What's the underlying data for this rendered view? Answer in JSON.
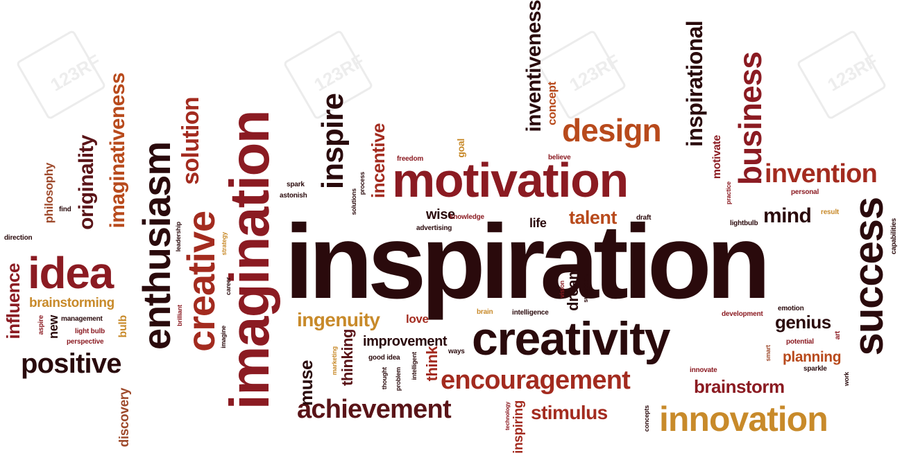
{
  "watermark": {
    "text": "123RF"
  },
  "words": {
    "inspiration": "inspiration",
    "creativity": "creativity",
    "motivation": "motivation",
    "imagination": "imagination",
    "enthusiasm": "enthusiasm",
    "creative": "creative",
    "success": "success",
    "innovation": "innovation",
    "encouragement": "encouragement",
    "achievement": "achievement",
    "idea": "idea",
    "positive": "positive",
    "design": "design",
    "business": "business",
    "invention": "invention",
    "inspire": "inspire",
    "inventiveness": "inventiveness",
    "inspirational": "inspirational",
    "imaginativeness": "imaginativeness",
    "originality": "originality",
    "solution": "solution",
    "ingenuity": "ingenuity",
    "improvement": "improvement",
    "stimulus": "stimulus",
    "genius": "genius",
    "brainstorm": "brainstorm",
    "brainstorming": "brainstorming",
    "planning": "planning",
    "talent": "talent",
    "mind": "mind",
    "incentive": "incentive",
    "muse": "muse",
    "thinking": "thinking",
    "influence": "influence",
    "wise": "wise",
    "life": "life",
    "love": "love",
    "think": "think",
    "dream": "dream",
    "concept": "concept",
    "philosophy": "philosophy",
    "discovery": "discovery",
    "inspiring": "inspiring",
    "motivate": "motivate",
    "new": "new",
    "bulb": "bulb",
    "goal": "goal",
    "freedom": "freedom",
    "believe": "believe",
    "spark": "spark",
    "astonish": "astonish",
    "knowledge": "knowledge",
    "advertising": "advertising",
    "draft": "draft",
    "personal": "personal",
    "result": "result",
    "lightbulb": "lightbulb",
    "capabilities": "capabilities",
    "direction": "direction",
    "find": "find",
    "leadership": "leadership",
    "strategy": "strategy",
    "career": "career",
    "brilliant": "brilliant",
    "imagine": "imagine",
    "aspire": "aspire",
    "management": "management",
    "light_bulb": "light bulb",
    "perspective": "perspective",
    "brain": "brain",
    "intelligence": "intelligence",
    "vision": "vision",
    "successful": "successful",
    "emotion": "emotion",
    "development": "development",
    "art": "art",
    "potential": "potential",
    "smart": "smart",
    "innovate": "innovate",
    "sparkle": "sparkle",
    "work": "work",
    "marketing": "marketing",
    "good_idea": "good idea",
    "thought": "thought",
    "problem": "problem",
    "intelligent": "intelligent",
    "ways": "ways",
    "technology": "technology",
    "concepts": "concepts",
    "practice": "practice",
    "process": "process",
    "solutions": "solutions"
  }
}
